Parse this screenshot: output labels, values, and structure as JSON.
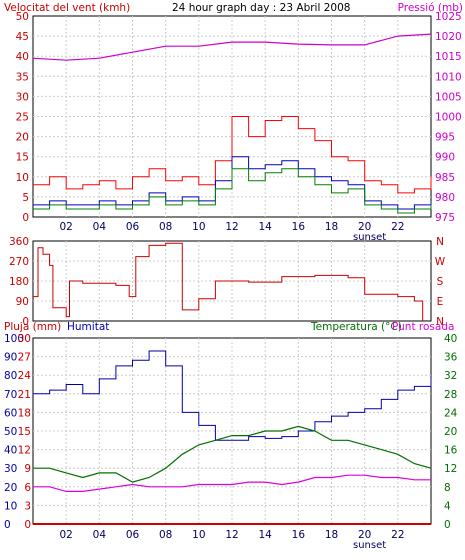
{
  "header": {
    "title": "24 hour graph day : 23 Abril 2008",
    "wind_label": "Velocitat del vent (kmh)",
    "pressure_label": "Pressió (mb)"
  },
  "bottom_header": {
    "rain_label": "Pluja (mm)",
    "humidity_label": "Humitat",
    "temp_label": "Temperatura (°C)",
    "dew_label": "Punt rosada"
  },
  "sunset_label": "sunset",
  "colors": {
    "wind_gust": "#ff0000",
    "wind_avg": "#0000c0",
    "wind_speed": "#008000",
    "pressure": "#cc00cc",
    "direction": "#cc0000",
    "humidity": "#0000aa",
    "temperature": "#007000",
    "dewpoint": "#dd00dd",
    "rain": "#cc0000"
  },
  "chart_data": [
    {
      "type": "line",
      "title": "24 hour graph day : 23 Abril 2008",
      "x_ticks": [
        "02",
        "04",
        "06",
        "08",
        "10",
        "12",
        "14",
        "16",
        "18",
        "20",
        "22"
      ],
      "x_range": [
        0,
        24
      ],
      "left_axis": {
        "label": "Velocitat del vent (kmh)",
        "ylim": [
          0,
          50
        ],
        "ticks": [
          0,
          5,
          10,
          15,
          20,
          25,
          30,
          35,
          40,
          45,
          50
        ]
      },
      "right_axis": {
        "label": "Pressió (mb)",
        "ylim": [
          975,
          1025
        ],
        "ticks": [
          975,
          980,
          985,
          990,
          995,
          1000,
          1005,
          1010,
          1015,
          1020,
          1025
        ]
      },
      "series": [
        {
          "name": "Pressió (mb)",
          "axis": "right",
          "x": [
            0,
            2,
            4,
            6,
            8,
            10,
            12,
            14,
            16,
            18,
            20,
            22,
            24
          ],
          "y": [
            1014.5,
            1014.0,
            1014.5,
            1016.0,
            1017.5,
            1017.5,
            1018.5,
            1018.5,
            1018.0,
            1017.8,
            1017.8,
            1020.0,
            1020.5
          ]
        },
        {
          "axis": "left",
          "x": [
            0,
            1,
            2,
            3,
            4,
            5,
            6,
            7,
            8,
            9,
            10,
            11,
            12,
            13,
            14,
            15,
            16,
            17,
            18,
            19,
            20,
            21,
            22,
            23,
            24
          ],
          "y": [
            8,
            10,
            7,
            8,
            9,
            7,
            10,
            12,
            9,
            10,
            8,
            14,
            25,
            20,
            24,
            25,
            22,
            19,
            15,
            14,
            9,
            8,
            6,
            7,
            10
          ]
        },
        {
          "axis": "left",
          "x": [
            0,
            1,
            2,
            3,
            4,
            5,
            6,
            7,
            8,
            9,
            10,
            11,
            12,
            13,
            14,
            15,
            16,
            17,
            18,
            19,
            20,
            21,
            22,
            23,
            24
          ],
          "y": [
            3,
            4,
            3,
            3,
            4,
            3,
            4,
            6,
            4,
            5,
            4,
            9,
            15,
            12,
            13,
            14,
            12,
            10,
            9,
            8,
            4,
            3,
            2,
            3,
            4
          ]
        },
        {
          "axis": "left",
          "x": [
            0,
            1,
            2,
            3,
            4,
            5,
            6,
            7,
            8,
            9,
            10,
            11,
            12,
            13,
            14,
            15,
            16,
            17,
            18,
            19,
            20,
            21,
            22,
            23,
            24
          ],
          "y": [
            2,
            3,
            2,
            2,
            3,
            2,
            3,
            5,
            3,
            4,
            3,
            7,
            12,
            9,
            11,
            12,
            10,
            8,
            6,
            7,
            3,
            2,
            1,
            2,
            3
          ]
        }
      ]
    },
    {
      "type": "line",
      "x_ticks": [],
      "x_range": [
        0,
        24
      ],
      "left_axis": {
        "ylim": [
          0,
          360
        ],
        "ticks": [
          0,
          90,
          180,
          270,
          360
        ]
      },
      "right_axis": {
        "ylim": [
          0,
          360
        ],
        "tick_labels": [
          "N",
          "E",
          "S",
          "W",
          "N"
        ]
      },
      "series": [
        {
          "axis": "left",
          "x": [
            0,
            0.3,
            0.6,
            1.0,
            1.2,
            2.0,
            2.2,
            3.0,
            5.0,
            5.8,
            6.2,
            7.0,
            8.0,
            8.7,
            9.0,
            10.0,
            11.0,
            13.0,
            15.0,
            17.0,
            19.0,
            20.0,
            22.0,
            23.0,
            23.5
          ],
          "y": [
            110,
            330,
            300,
            250,
            60,
            20,
            180,
            170,
            160,
            110,
            290,
            340,
            350,
            350,
            50,
            100,
            180,
            175,
            200,
            205,
            195,
            120,
            110,
            90,
            0
          ]
        }
      ]
    },
    {
      "type": "line",
      "x_ticks": [
        "02",
        "04",
        "06",
        "08",
        "10",
        "12",
        "14",
        "16",
        "18",
        "20",
        "22"
      ],
      "x_range": [
        0,
        24
      ],
      "left_axis_rain": {
        "label": "Pluja (mm)",
        "ylim": [
          0,
          30
        ],
        "ticks": [
          0,
          3,
          6,
          9,
          12,
          15,
          18,
          21,
          24,
          27,
          30
        ]
      },
      "left_axis_humidity": {
        "label": "Humitat",
        "ylim": [
          0,
          100
        ],
        "ticks": [
          0,
          10,
          20,
          30,
          40,
          50,
          60,
          70,
          80,
          90,
          100
        ]
      },
      "right_axis": {
        "label": "Temperatura (°C)",
        "ylim": [
          0,
          40
        ],
        "ticks": [
          0,
          4,
          8,
          12,
          16,
          20,
          24,
          28,
          32,
          36,
          40
        ]
      },
      "series": [
        {
          "name": "Humitat",
          "axis": "humidity",
          "x": [
            0,
            1,
            2,
            3,
            4,
            5,
            6,
            7,
            8,
            9,
            10,
            11,
            12,
            13,
            14,
            15,
            16,
            17,
            18,
            19,
            20,
            21,
            22,
            23,
            24
          ],
          "y": [
            70,
            72,
            75,
            70,
            78,
            85,
            88,
            93,
            85,
            60,
            53,
            45,
            45,
            47,
            46,
            47,
            50,
            55,
            58,
            60,
            62,
            67,
            72,
            74,
            79
          ]
        },
        {
          "name": "Temperatura (°C)",
          "axis": "right",
          "x": [
            0,
            1,
            2,
            3,
            4,
            5,
            6,
            7,
            8,
            9,
            10,
            11,
            12,
            13,
            14,
            15,
            16,
            17,
            18,
            19,
            20,
            21,
            22,
            23,
            24
          ],
          "y": [
            12,
            12,
            11,
            10,
            11,
            11,
            9,
            10,
            12,
            15,
            17,
            18,
            19,
            19,
            20,
            20,
            21,
            20,
            18,
            18,
            17,
            16,
            15,
            13,
            12
          ]
        },
        {
          "name": "Punt rosada",
          "axis": "right",
          "x": [
            0,
            1,
            2,
            3,
            4,
            5,
            6,
            7,
            8,
            9,
            10,
            11,
            12,
            13,
            14,
            15,
            16,
            17,
            18,
            19,
            20,
            21,
            22,
            23,
            24
          ],
          "y": [
            8,
            8,
            7,
            7,
            7.5,
            8,
            8.5,
            8,
            8,
            8,
            8.5,
            8.5,
            8.5,
            9,
            9,
            8.5,
            9,
            10,
            10,
            10.5,
            10.5,
            10,
            10,
            9.5,
            9.5
          ]
        },
        {
          "name": "Pluja (mm)",
          "axis": "rain",
          "x": [
            0,
            24
          ],
          "y": [
            0,
            0
          ]
        }
      ]
    }
  ]
}
